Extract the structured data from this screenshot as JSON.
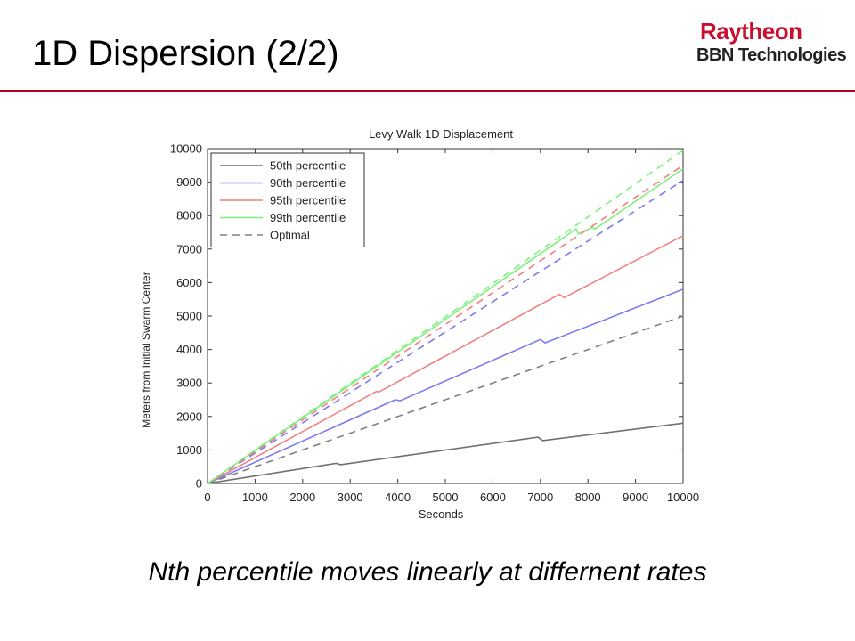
{
  "slide": {
    "title": "1D Dispersion (2/2)",
    "caption": "Nth percentile moves linearly at differnent rates"
  },
  "logo": {
    "name": "Raytheon",
    "subtitle": "BBN Technologies",
    "color": "#c8102e"
  },
  "chart_data": {
    "type": "line",
    "title": "Levy Walk 1D Displacement",
    "xlabel": "Seconds",
    "ylabel": "Meters from Initial Swarm Center",
    "xlim": [
      0,
      10000
    ],
    "ylim": [
      0,
      10000
    ],
    "xticks": [
      0,
      1000,
      2000,
      3000,
      4000,
      5000,
      6000,
      7000,
      8000,
      9000,
      10000
    ],
    "yticks": [
      0,
      1000,
      2000,
      3000,
      4000,
      5000,
      6000,
      7000,
      8000,
      9000,
      10000
    ],
    "legend_position": "top-left",
    "grid": false,
    "series": [
      {
        "name": "50th percentile",
        "color": "#707070",
        "dash": "solid",
        "x": [
          0,
          2700,
          2800,
          6950,
          7050,
          10000
        ],
        "y": [
          0,
          600,
          560,
          1380,
          1280,
          1800
        ]
      },
      {
        "name": "90th percentile",
        "color": "#7b7bf0",
        "dash": "solid",
        "x": [
          0,
          3950,
          4050,
          7000,
          7100,
          10000
        ],
        "y": [
          0,
          2500,
          2470,
          4300,
          4200,
          5800
        ]
      },
      {
        "name": "95th percentile",
        "color": "#f08080",
        "dash": "solid",
        "x": [
          0,
          3550,
          3600,
          7400,
          7500,
          10000
        ],
        "y": [
          0,
          2750,
          2730,
          5650,
          5550,
          7400
        ]
      },
      {
        "name": "99th percentile",
        "color": "#7ef07e",
        "dash": "solid",
        "x": [
          0,
          7750,
          7800,
          8100,
          8150,
          10000
        ],
        "y": [
          0,
          7600,
          7450,
          7650,
          7600,
          9400
        ]
      },
      {
        "name": "Optimal",
        "color": "#808080",
        "dash": "dashed",
        "x": [
          0,
          10000
        ],
        "y": [
          0,
          5000
        ]
      },
      {
        "name": "",
        "color": "#7b7bf0",
        "dash": "dashed",
        "x": [
          0,
          10000
        ],
        "y": [
          0,
          9050
        ]
      },
      {
        "name": "",
        "color": "#f08080",
        "dash": "dashed",
        "x": [
          0,
          10000
        ],
        "y": [
          0,
          9500
        ]
      },
      {
        "name": "",
        "color": "#7ef07e",
        "dash": "dashed",
        "x": [
          0,
          10000
        ],
        "y": [
          0,
          9950
        ]
      }
    ]
  }
}
